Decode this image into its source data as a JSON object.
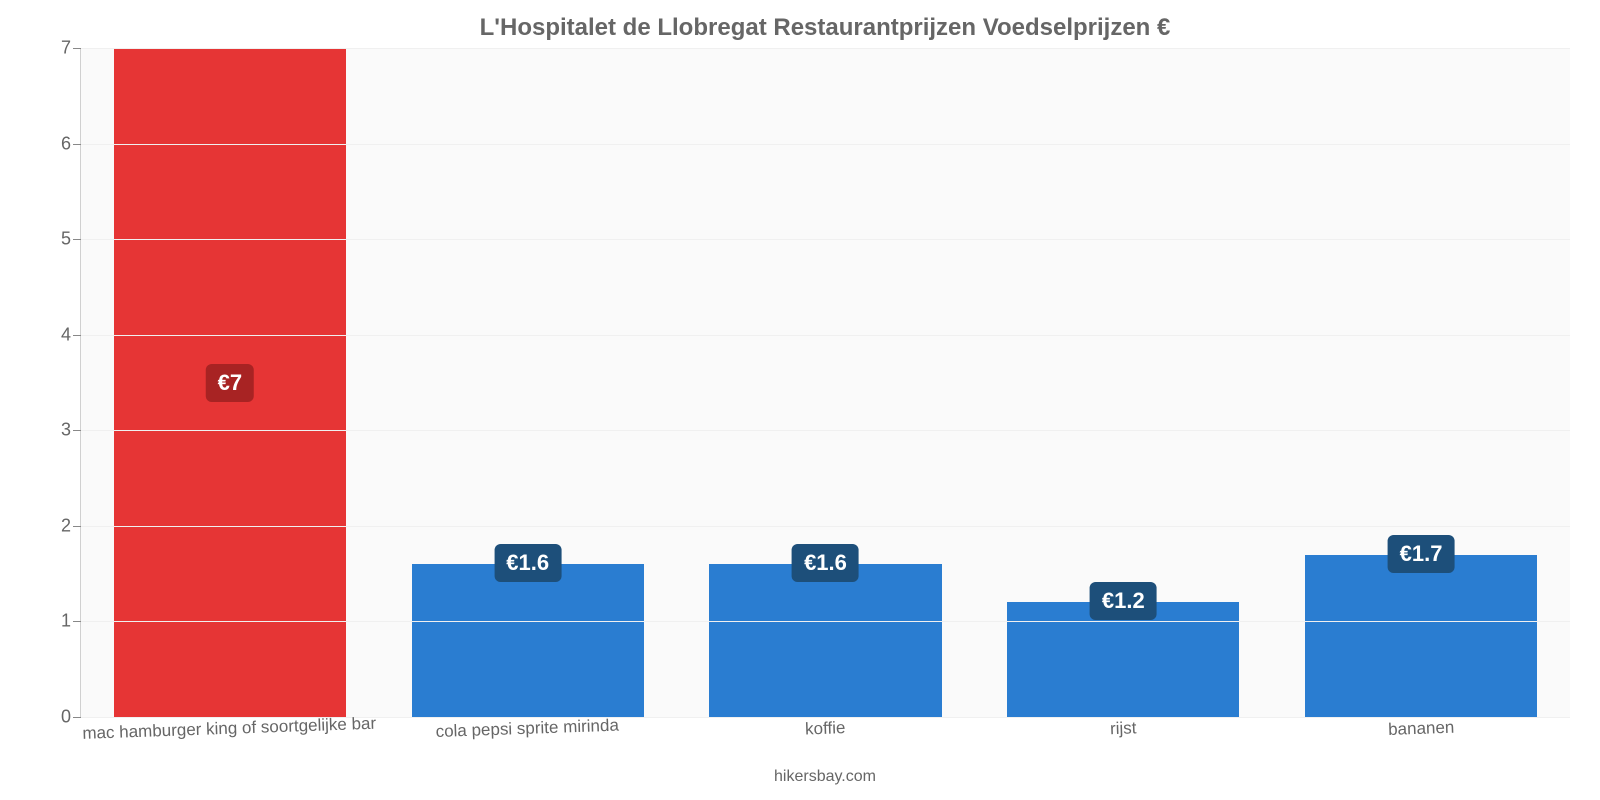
{
  "chart": {
    "type": "bar",
    "title": "L'Hospitalet de Llobregat Restaurantprijzen Voedselprijzen €",
    "title_color": "#666666",
    "title_fontsize": 24,
    "credit": "hikersbay.com",
    "credit_color": "#666666",
    "background_color": "#fafafa",
    "grid_color": "#f0f0f0",
    "axis_color": "#b0b0b0",
    "ylim": [
      0,
      7
    ],
    "yticks": [
      0,
      1,
      2,
      3,
      4,
      5,
      6,
      7
    ],
    "ytick_fontsize": 18,
    "xtick_fontsize": 17,
    "tick_color": "#666666",
    "bar_width_pct": 78,
    "categories": [
      "mac hamburger king of soortgelijke bar",
      "cola pepsi sprite mirinda",
      "koffie",
      "rijst",
      "bananen"
    ],
    "values": [
      7,
      1.6,
      1.6,
      1.2,
      1.7
    ],
    "value_labels": [
      "€7",
      "€1.6",
      "€1.6",
      "€1.2",
      "€1.7"
    ],
    "bar_colors": [
      "#e63535",
      "#2a7dd1",
      "#2a7dd1",
      "#2a7dd1",
      "#2a7dd1"
    ],
    "label_badge_colors": [
      "#a82323",
      "#1d4f7a",
      "#1d4f7a",
      "#1d4f7a",
      "#1d4f7a"
    ],
    "label_text_color": "#ffffff",
    "label_fontsize": 22,
    "label_positions": [
      "inside-center",
      "above",
      "above",
      "above",
      "above"
    ]
  }
}
